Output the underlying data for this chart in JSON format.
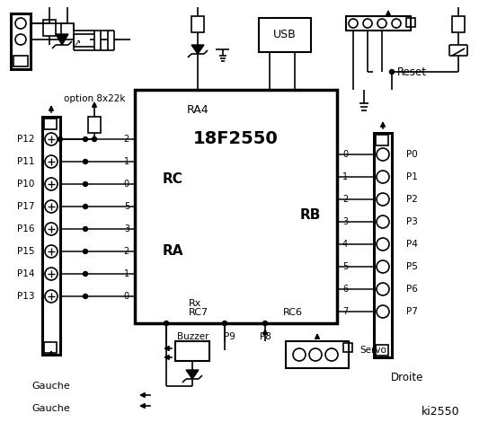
{
  "chip_name": "18F2550",
  "chip_ra4": "RA4",
  "chip_rc": "RC",
  "chip_ra": "RA",
  "chip_rb": "RB",
  "chip_rx": "Rx",
  "chip_rc7": "RC7",
  "chip_rc6": "RC6",
  "usb_label": "USB",
  "reset_label": "Reset",
  "option_label": "option 8x22k",
  "gauche_label": "Gauche",
  "droite_label": "Droite",
  "brand_label": "ki2550",
  "buzzer_label": "Buzzer",
  "p9_label": "P9",
  "p8_label": "P8",
  "servo_label": "Servo",
  "left_pins": [
    "P12",
    "P11",
    "P10",
    "P17",
    "P16",
    "P15",
    "P14",
    "P13"
  ],
  "rc_nums": [
    "2",
    "1",
    "0",
    "5",
    "3",
    "2",
    "1",
    "0"
  ],
  "rb_nums": [
    "0",
    "1",
    "2",
    "3",
    "4",
    "5",
    "6",
    "7"
  ],
  "right_pins": [
    "P0",
    "P1",
    "P2",
    "P3",
    "P4",
    "P5",
    "P6",
    "P7"
  ]
}
